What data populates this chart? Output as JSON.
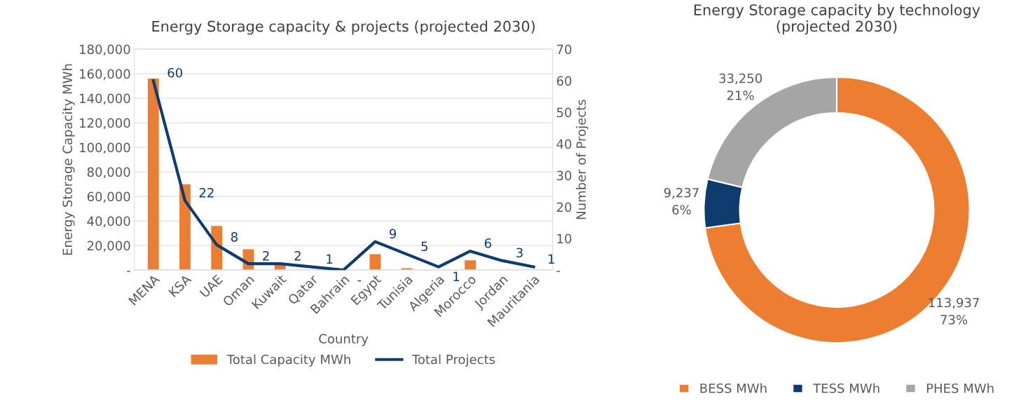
{
  "chart_data": [
    {
      "type": "bar",
      "title": "Energy Storage capacity & projects (projected 2030)",
      "xlabel": "Country",
      "ylabel": "Energy Storage Capacity MWh",
      "y2label": "Number of Projects",
      "categories": [
        "MENA",
        "KSA",
        "UAE",
        "Oman",
        "Kuwait",
        "Qatar",
        "Bahrain",
        "Egypt",
        "Tunisia",
        "Algeria",
        "Morocco",
        "Jordan",
        "Mauritania"
      ],
      "series": [
        {
          "name": "Total Capacity MWh",
          "type": "bar",
          "color": "#ed7d31",
          "values": [
            156000,
            70000,
            36000,
            17000,
            4500,
            0,
            0,
            13000,
            1500,
            0,
            8000,
            0,
            0
          ]
        },
        {
          "name": "Total Projects",
          "type": "line",
          "axis": "y2",
          "color": "#0e3c6e",
          "values": [
            60,
            22,
            8,
            2,
            2,
            1,
            0,
            9,
            5,
            1,
            6,
            3,
            1
          ],
          "value_labels": [
            "60",
            "22",
            "8",
            "2",
            "2",
            "1",
            "-",
            "9",
            "5",
            "1",
            "6",
            "3",
            "1"
          ]
        }
      ],
      "ylim": [
        0,
        180000
      ],
      "yticks": [
        {
          "value": 0,
          "label": "-"
        },
        {
          "value": 20000,
          "label": "20,000"
        },
        {
          "value": 40000,
          "label": "40,000"
        },
        {
          "value": 60000,
          "label": "60,000"
        },
        {
          "value": 80000,
          "label": "80,000"
        },
        {
          "value": 100000,
          "label": "100,000"
        },
        {
          "value": 120000,
          "label": "120,000"
        },
        {
          "value": 140000,
          "label": "140,000"
        },
        {
          "value": 160000,
          "label": "160,000"
        },
        {
          "value": 180000,
          "label": "180,000"
        }
      ],
      "y2lim": [
        0,
        70
      ],
      "y2ticks": [
        {
          "value": 0,
          "label": "-"
        },
        10,
        20,
        30,
        40,
        50,
        60,
        70
      ],
      "grid": "y",
      "legend": "bottom"
    },
    {
      "type": "donut",
      "title": "Energy Storage capacity by technology\n(projected 2030)",
      "categories": [
        "BESS MWh",
        "TESS MWh",
        "PHES MWh"
      ],
      "values": [
        113937,
        9237,
        33250
      ],
      "colors": [
        "#ed7d31",
        "#0e3c6e",
        "#a5a5a5"
      ],
      "value_labels": [
        "113,937\n73%",
        "9,237\n6%",
        "33,250\n21%"
      ],
      "legend": "bottom"
    }
  ]
}
